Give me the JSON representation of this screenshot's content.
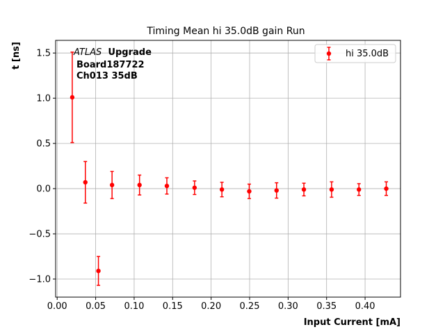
{
  "chart_data": {
    "type": "scatter",
    "title": "Timing Mean hi 35.0dB gain Run",
    "xlabel": "Input Current [mA]",
    "ylabel": "t [ns]",
    "xlim": [
      -0.002,
      0.446
    ],
    "ylim": [
      -1.2,
      1.64
    ],
    "xticks": [
      0.0,
      0.05,
      0.1,
      0.15,
      0.2,
      0.25,
      0.3,
      0.35,
      0.4
    ],
    "xtick_labels": [
      "0.00",
      "0.05",
      "0.10",
      "0.15",
      "0.20",
      "0.25",
      "0.30",
      "0.35",
      "0.40"
    ],
    "yticks": [
      -1.0,
      -0.5,
      0.0,
      0.5,
      1.0,
      1.5
    ],
    "ytick_labels": [
      "−1.0",
      "−0.5",
      "0.0",
      "0.5",
      "1.0",
      "1.5"
    ],
    "grid": true,
    "legend": {
      "placement": "top-right"
    },
    "annotation": {
      "line1_italic": "ATLAS",
      "line1_bold": "Upgrade",
      "line2": "Board187722",
      "line3": "Ch013 35dB"
    },
    "series": [
      {
        "name": "hi 35.0dB",
        "color": "#ff0000",
        "x": [
          0.0196,
          0.0366,
          0.0536,
          0.0713,
          0.107,
          0.1425,
          0.1785,
          0.214,
          0.2495,
          0.285,
          0.3205,
          0.3565,
          0.392,
          0.4275
        ],
        "y": [
          1.01,
          0.07,
          -0.91,
          0.04,
          0.04,
          0.03,
          0.01,
          -0.01,
          -0.03,
          -0.02,
          -0.01,
          -0.01,
          -0.01,
          0.0
        ],
        "yerr": [
          0.5,
          0.23,
          0.16,
          0.15,
          0.11,
          0.09,
          0.075,
          0.08,
          0.08,
          0.085,
          0.07,
          0.085,
          0.065,
          0.075
        ]
      }
    ]
  }
}
